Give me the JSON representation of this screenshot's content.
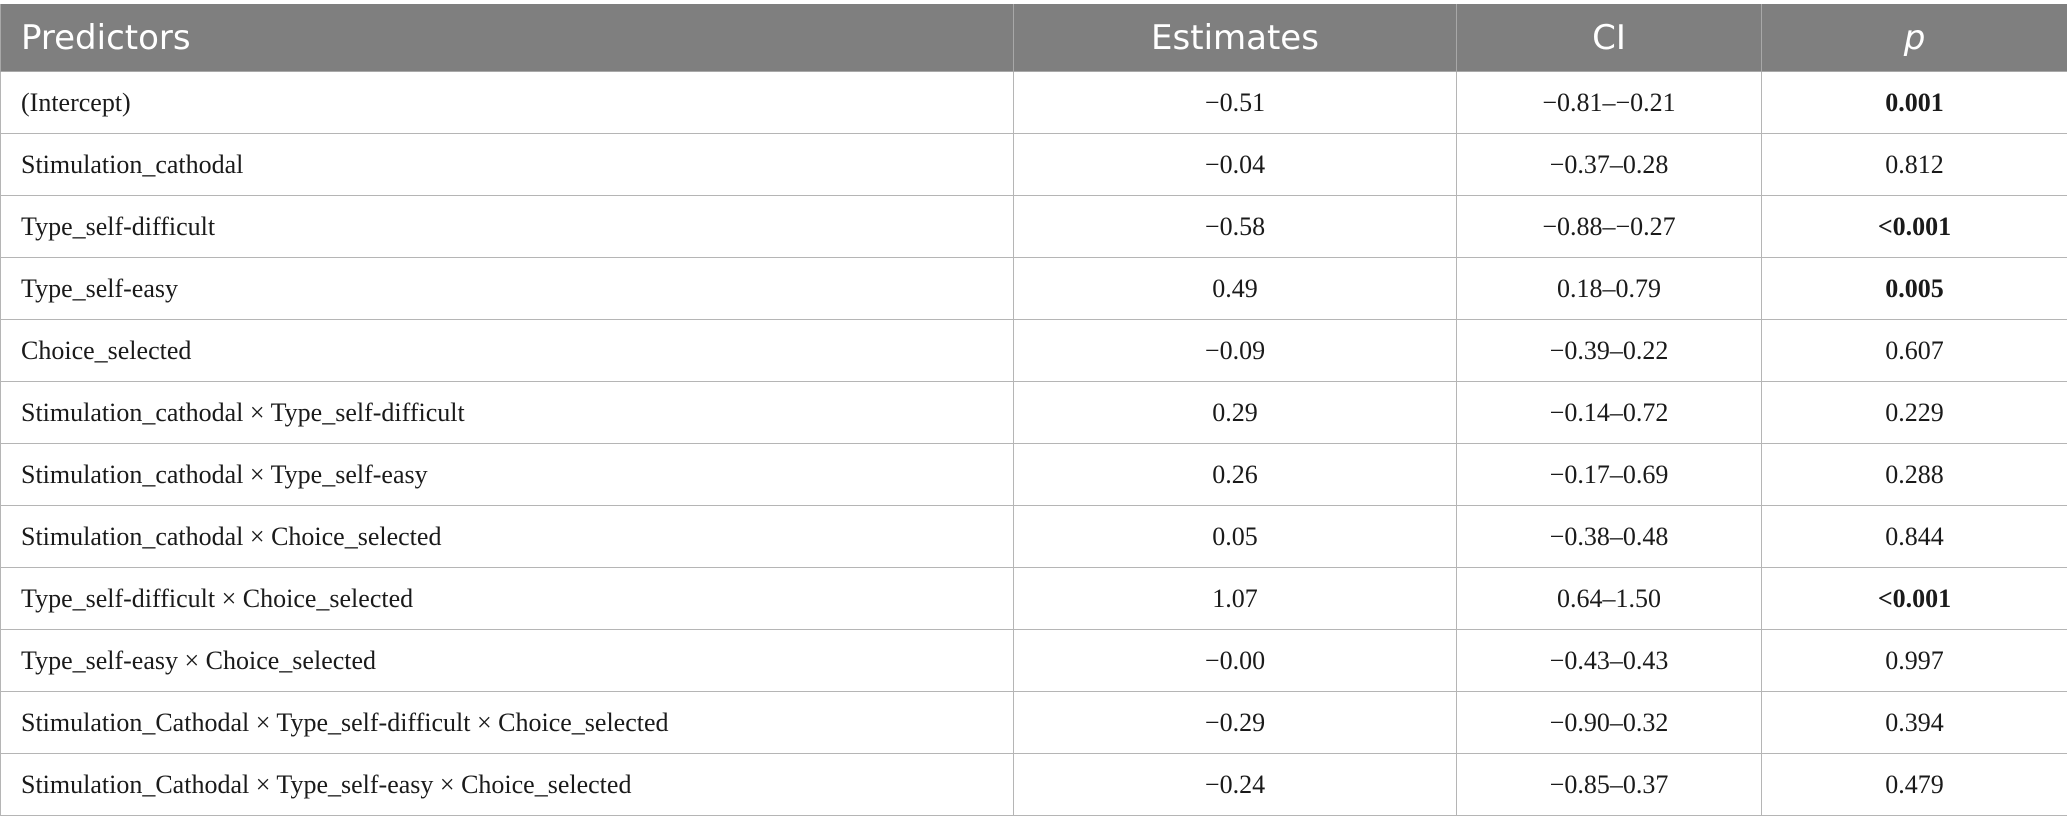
{
  "table": {
    "headers": [
      "Predictors",
      "Estimates",
      "CI",
      "p"
    ],
    "rows": [
      {
        "predictor": "(Intercept)",
        "estimate": "−0.51",
        "ci": "−0.81–−0.21",
        "p": "0.001",
        "p_bold": true
      },
      {
        "predictor": "Stimulation_cathodal",
        "estimate": "−0.04",
        "ci": "−0.37–0.28",
        "p": "0.812",
        "p_bold": false
      },
      {
        "predictor": "Type_self-difficult",
        "estimate": "−0.58",
        "ci": "−0.88–−0.27",
        "p": "<0.001",
        "p_bold": true
      },
      {
        "predictor": "Type_self-easy",
        "estimate": "0.49",
        "ci": "0.18–0.79",
        "p": "0.005",
        "p_bold": true
      },
      {
        "predictor": "Choice_selected",
        "estimate": "−0.09",
        "ci": "−0.39–0.22",
        "p": "0.607",
        "p_bold": false
      },
      {
        "predictor": "Stimulation_cathodal × Type_self-difficult",
        "estimate": "0.29",
        "ci": "−0.14–0.72",
        "p": "0.229",
        "p_bold": false
      },
      {
        "predictor": "Stimulation_cathodal × Type_self-easy",
        "estimate": "0.26",
        "ci": "−0.17–0.69",
        "p": "0.288",
        "p_bold": false
      },
      {
        "predictor": "Stimulation_cathodal × Choice_selected",
        "estimate": "0.05",
        "ci": "−0.38–0.48",
        "p": "0.844",
        "p_bold": false
      },
      {
        "predictor": "Type_self-difficult × Choice_selected",
        "estimate": "1.07",
        "ci": "0.64–1.50",
        "p": "<0.001",
        "p_bold": true
      },
      {
        "predictor": "Type_self-easy × Choice_selected",
        "estimate": "−0.00",
        "ci": "−0.43–0.43",
        "p": "0.997",
        "p_bold": false
      },
      {
        "predictor": "Stimulation_Cathodal × Type_self-difficult × Choice_selected",
        "estimate": "−0.29",
        "ci": "−0.90–0.32",
        "p": "0.394",
        "p_bold": false
      },
      {
        "predictor": "Stimulation_Cathodal × Type_self-easy × Choice_selected",
        "estimate": "−0.24",
        "ci": "−0.85–0.37",
        "p": "0.479",
        "p_bold": false
      }
    ]
  },
  "colors": {
    "header_bg": "#7f7f7f",
    "header_text": "#ffffff",
    "grid": "#b5b5b5"
  }
}
